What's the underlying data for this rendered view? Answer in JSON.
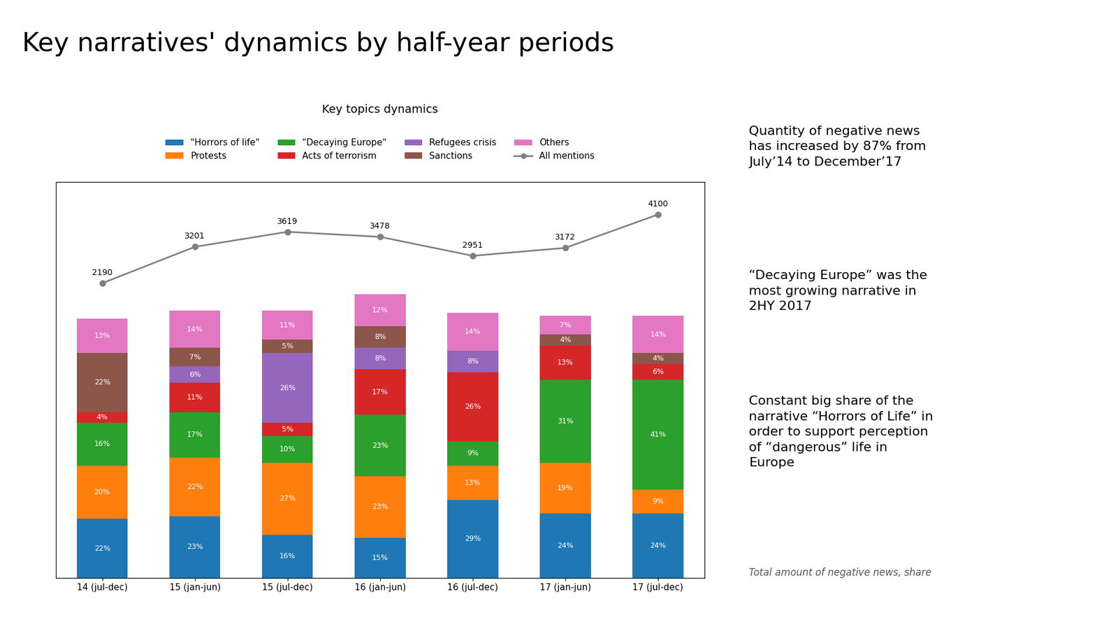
{
  "chart_data": {
    "type": "bar",
    "title": "Key narratives' dynamics by half-year periods",
    "subtitle": "Key topics dynamics",
    "annotations": [
      "Quantity of negative news\nhas increased by 87% from\nJuly’14 to December’17",
      "“Decaying Europe” was the\nmost growing narrative in\n2HY 2017",
      "Constant big share of the\nnarrative “Horrors of Life” in\norder to support perception\nof “dangerous” life in\nEurope",
      "Total amount of negative news, share"
    ],
    "categories": [
      "14 (jul-dec)",
      "15 (jan-jun)",
      "15 (jul-dec)",
      "16 (jan-jun)",
      "16 (jul-dec)",
      "17 (jan-jun)",
      "17 (jul-dec)"
    ],
    "stacked": true,
    "data_labels": true,
    "legend": "upper center",
    "grid": false,
    "tick_labels": "x",
    "ylim": [
      0,
      148
    ],
    "y2lim": [
      -6000,
      5000
    ],
    "series": [
      {
        "name": "\"Horrors of life\"",
        "type": "bar",
        "values": [
          22,
          23,
          16,
          15,
          29,
          24,
          24
        ],
        "value_labels": [
          "22%",
          "23%",
          "16%",
          "15%",
          "29%",
          "24%",
          "24%"
        ]
      },
      {
        "name": "Protests",
        "type": "bar",
        "values": [
          20,
          22,
          27,
          23,
          13,
          19,
          9
        ],
        "value_labels": [
          "20%",
          "22%",
          "27%",
          "23%",
          "13%",
          "19%",
          "9%"
        ]
      },
      {
        "name": "\"Decaying Europe\"",
        "type": "bar",
        "values": [
          16,
          17,
          10,
          23,
          9,
          31,
          41
        ],
        "value_labels": [
          "16%",
          "17%",
          "10%",
          "23%",
          "9%",
          "31%",
          "41%"
        ]
      },
      {
        "name": "Acts of terrorism",
        "type": "bar",
        "values": [
          4,
          11,
          5,
          17,
          26,
          13,
          6
        ],
        "value_labels": [
          "4%",
          "11%",
          "5%",
          "17%",
          "26%",
          "13%",
          "6%"
        ]
      },
      {
        "name": "Refugees crisis",
        "type": "bar",
        "values": [
          0,
          6,
          26,
          8,
          8,
          0,
          0
        ],
        "value_labels": [
          null,
          "6%",
          "26%",
          "8%",
          "8%",
          null,
          null
        ]
      },
      {
        "name": "Sanctions",
        "type": "bar",
        "values": [
          22,
          7,
          5,
          8,
          0,
          4,
          4
        ],
        "value_labels": [
          "22%",
          "7%",
          "5%",
          "8%",
          null,
          "4%",
          "4%"
        ]
      },
      {
        "name": "Others",
        "type": "bar",
        "values": [
          13,
          14,
          11,
          12,
          14,
          7,
          14
        ],
        "value_labels": [
          "13%",
          "14%",
          "11%",
          "12%",
          "14%",
          "7%",
          "14%"
        ]
      },
      {
        "name": "All mentions",
        "type": "line",
        "axis": "y2",
        "marker": "o",
        "line_style": "solid",
        "data_labels": true,
        "values": [
          2190,
          3201,
          3619,
          3478,
          2951,
          3172,
          4100
        ]
      }
    ]
  }
}
